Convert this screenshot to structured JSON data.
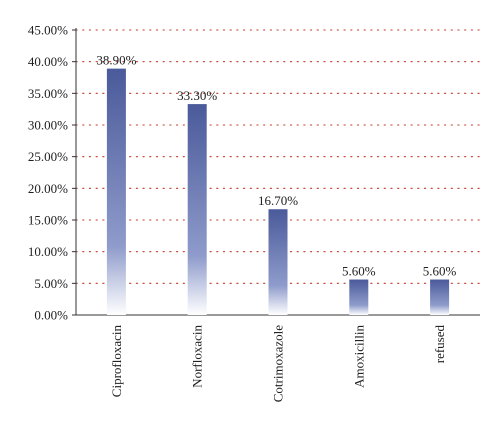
{
  "chart_data": {
    "type": "bar",
    "categories": [
      "Ciprofloxacin",
      "Norfloxacin",
      "Cotrimoxazole",
      "Amoxicillin",
      "refused"
    ],
    "values": [
      38.9,
      33.3,
      16.7,
      5.6,
      5.6
    ],
    "data_labels": [
      "38.90%",
      "33.30%",
      "16.70%",
      "5.60%",
      "5.60%"
    ],
    "y_ticks": [
      "0.00%",
      "5.00%",
      "10.00%",
      "15.00%",
      "20.00%",
      "25.00%",
      "30.00%",
      "35.00%",
      "40.00%",
      "45.00%"
    ],
    "ylim": [
      0,
      45
    ],
    "title": "",
    "xlabel": "",
    "ylabel": "",
    "grid": "horizontal dotted",
    "colors": {
      "bar_top": "#4a5a9a",
      "bar_bottom": "#ffffff",
      "grid": "#c0392b",
      "axis": "#333333"
    }
  }
}
